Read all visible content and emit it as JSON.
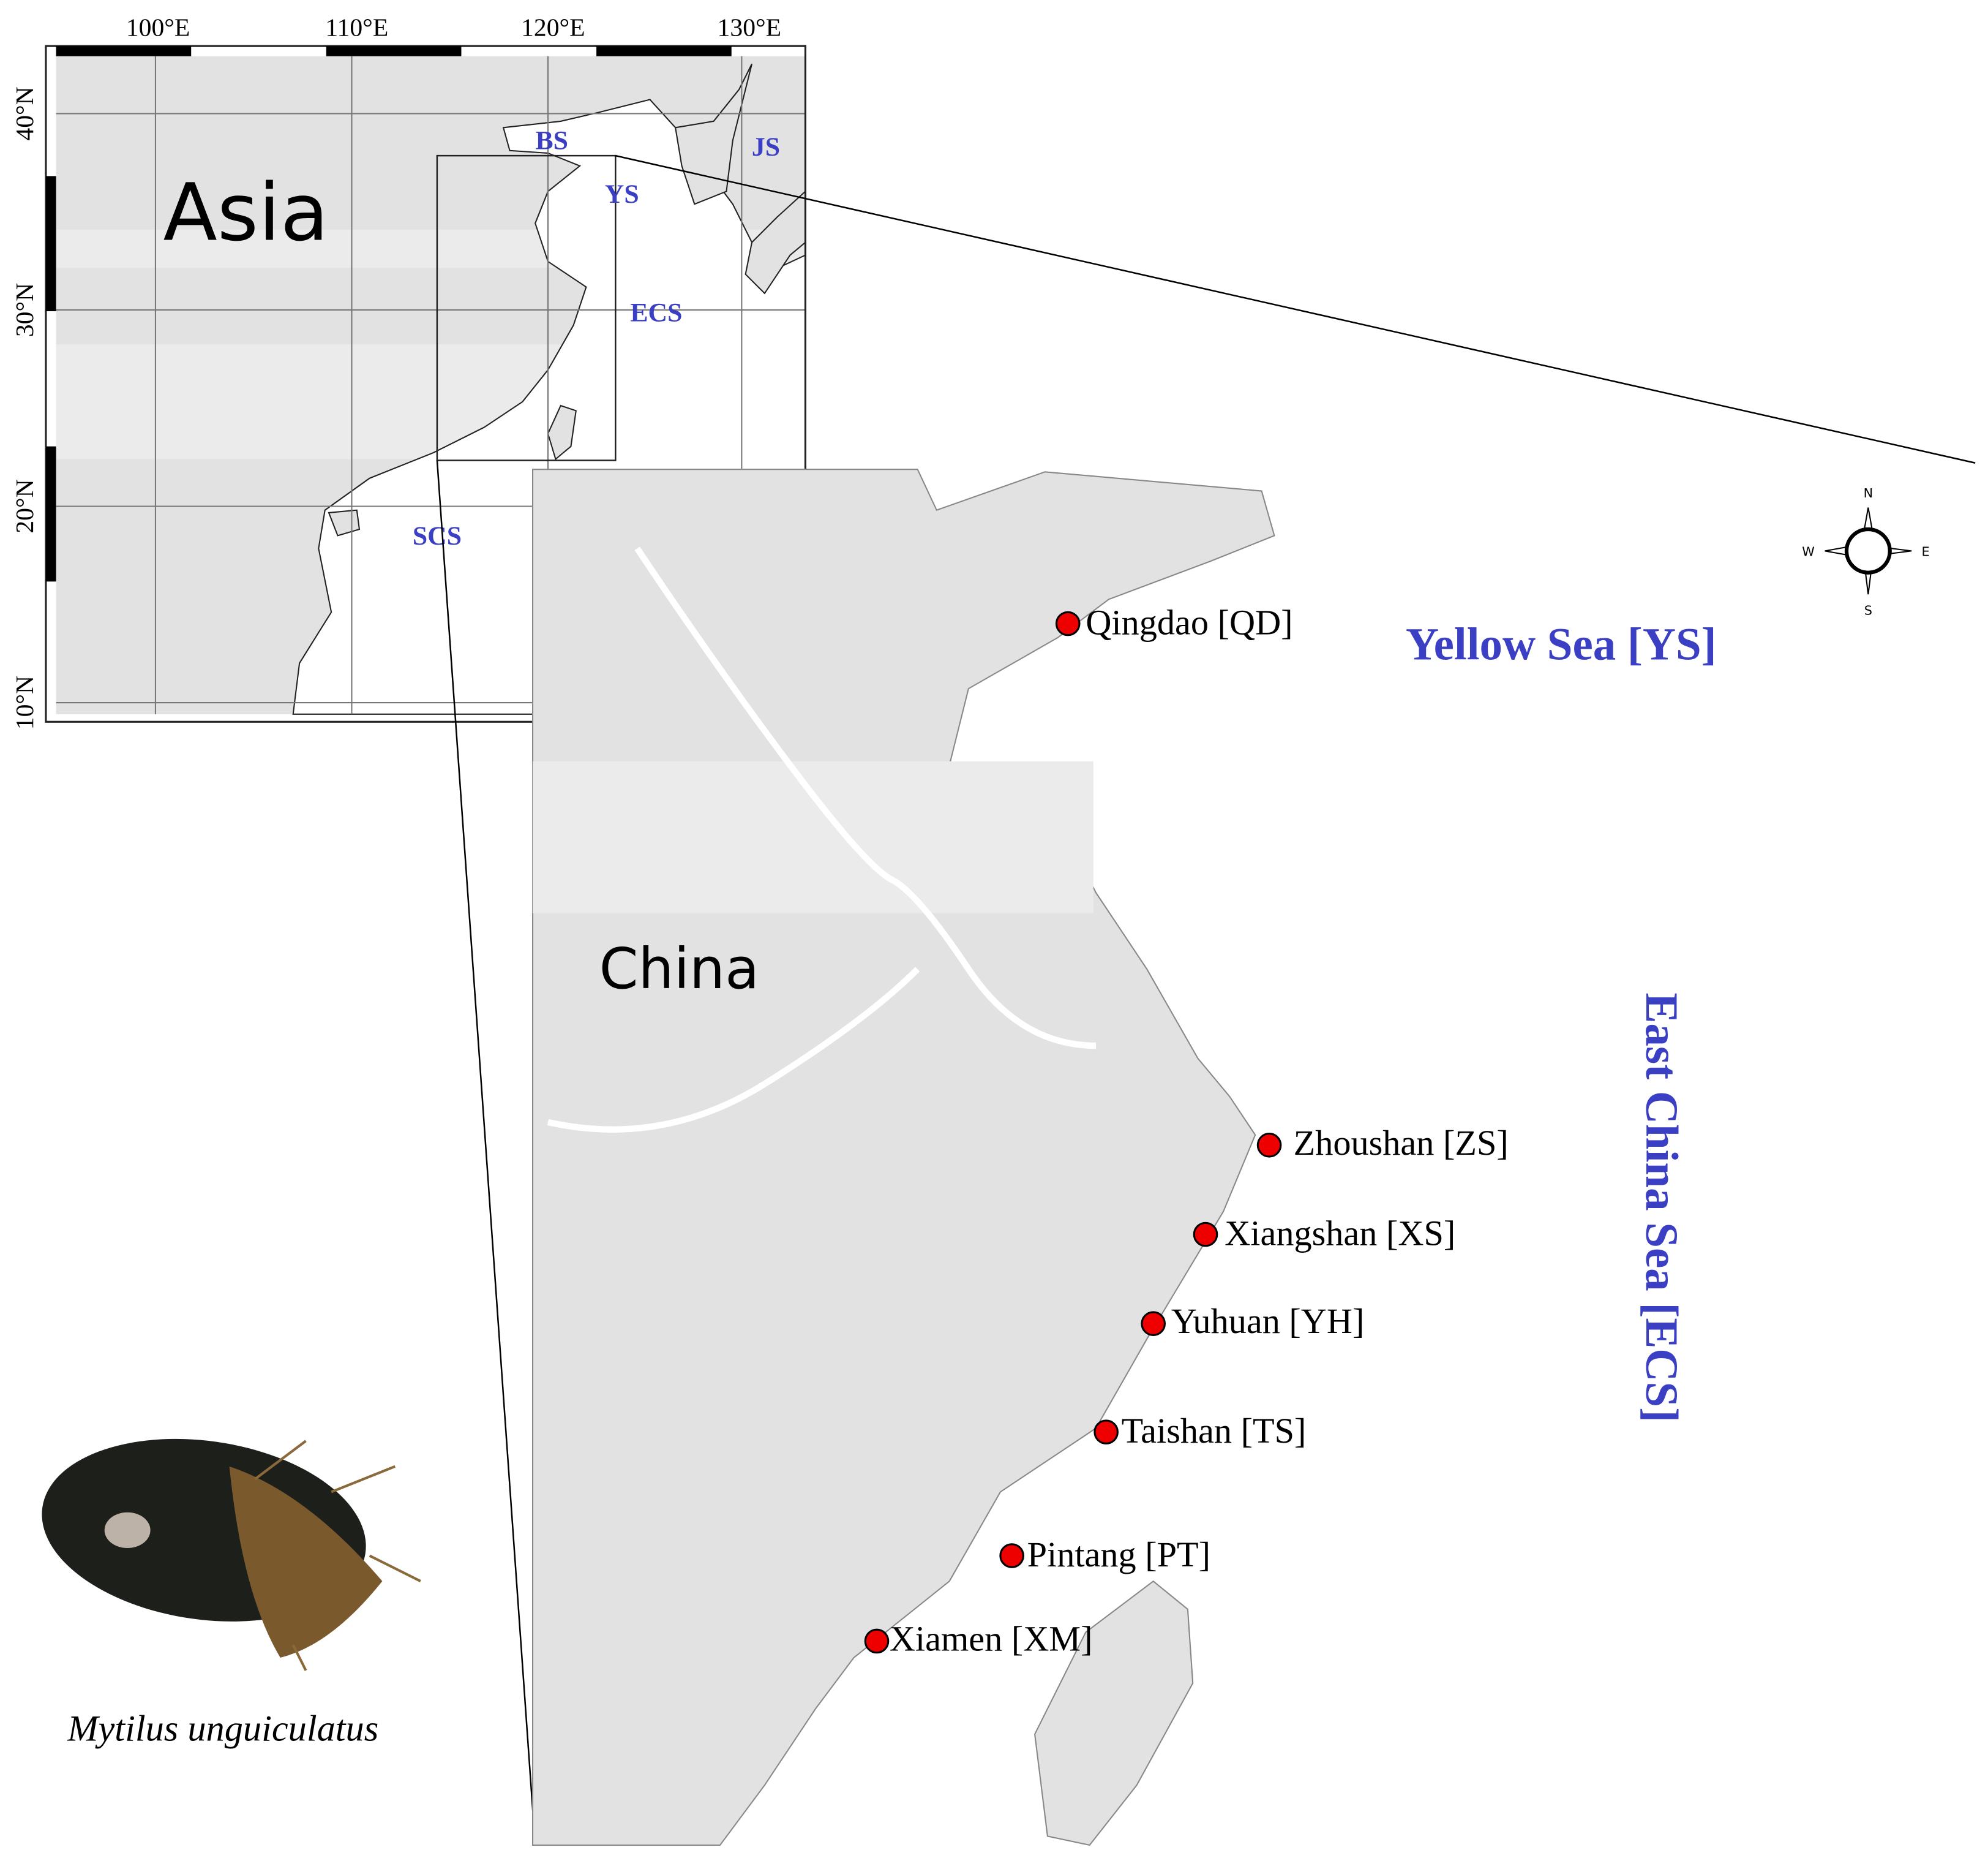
{
  "inset_map": {
    "lon_labels": [
      "100°E",
      "110°E",
      "120°E",
      "130°E"
    ],
    "lat_labels": [
      "40°N",
      "30°N",
      "20°N",
      "10°N"
    ],
    "region_label": "Asia",
    "sea_labels": [
      "BS",
      "YS",
      "JS",
      "ECS",
      "SCS"
    ]
  },
  "main_map": {
    "region_label": "China",
    "sea_labels": [
      "Yellow Sea [YS]",
      "East China Sea [ECS]"
    ],
    "sites": [
      "Qingdao [QD]",
      "Zhoushan [ZS]",
      "Xiangshan [XS]",
      "Yuhuan [YH]",
      "Taishan [TS]",
      "Pintang [PT]",
      "Xiamen [XM]"
    ]
  },
  "compass": {
    "north": "N",
    "east": "E",
    "south": "S",
    "west": "W"
  },
  "caption": "Mytilus unguiculatus"
}
